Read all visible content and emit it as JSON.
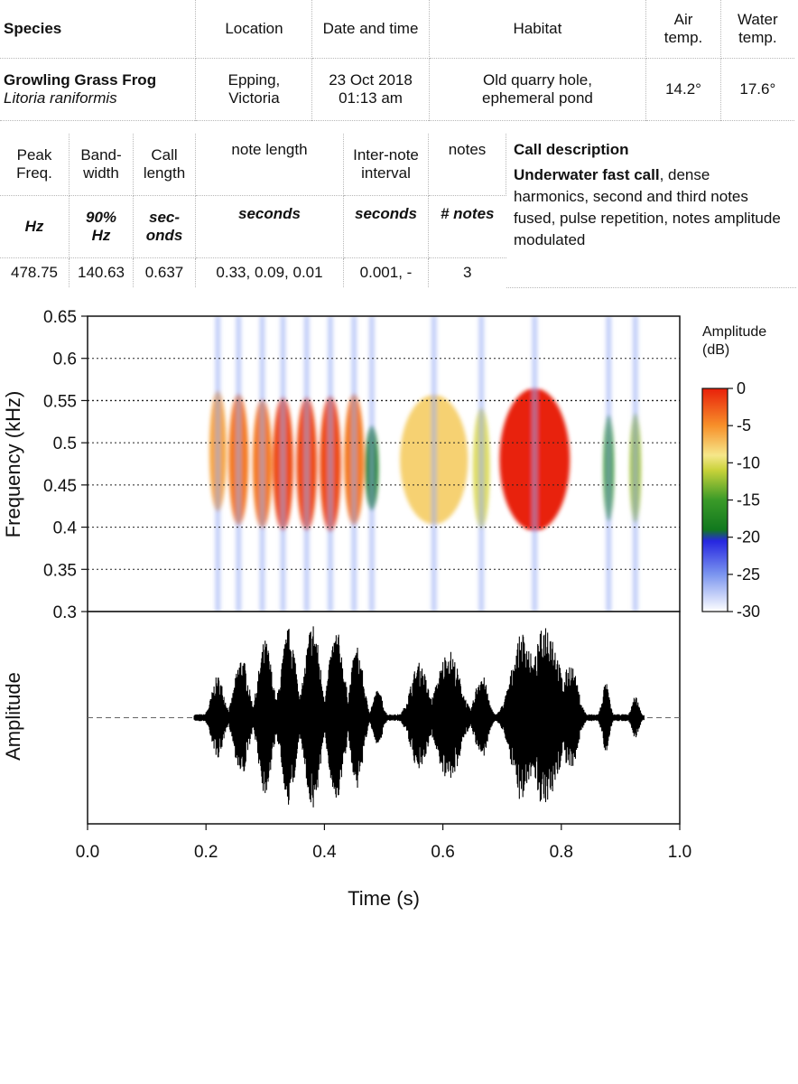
{
  "species_table": {
    "headers": {
      "species": "Species",
      "location": "Location",
      "date_time": "Date and time",
      "habitat": "Habitat",
      "air_temp": [
        "Air",
        "temp."
      ],
      "water_temp": [
        "Water",
        "temp."
      ]
    },
    "row": {
      "common_name": "Growling Grass Frog",
      "scientific_name": "Litoria raniformis",
      "location": [
        "Epping,",
        "Victoria"
      ],
      "date_time": [
        "23 Oct 2018",
        "01:13 am"
      ],
      "habitat": [
        "Old quarry hole,",
        "ephemeral pond"
      ],
      "air_temp": "14.2°",
      "water_temp": "17.6°"
    }
  },
  "call_table": {
    "headers": [
      [
        "Peak",
        "Freq."
      ],
      [
        "Band-",
        "width"
      ],
      [
        "Call",
        "length"
      ],
      [
        "note length"
      ],
      [
        "Inter-note",
        "interval"
      ],
      [
        "notes"
      ]
    ],
    "units": [
      [
        "Hz"
      ],
      [
        "90%",
        "Hz"
      ],
      [
        "sec-",
        "onds"
      ],
      [
        "seconds"
      ],
      [
        "seconds"
      ],
      [
        "# notes"
      ]
    ],
    "values": [
      "478.75",
      "140.63",
      "0.637",
      "0.33, 0.09, 0.01",
      "0.001, -",
      "3"
    ],
    "description_title": "Call description",
    "description_bold": "Underwater fast call",
    "description_text": ", dense harmonics, second and third notes fused, pulse repetition, notes amplitude modulated"
  },
  "chart_data": [
    {
      "type": "heatmap",
      "title": "",
      "xlabel": "",
      "ylabel": "Frequency (kHz)",
      "xlim": [
        0.0,
        1.0
      ],
      "ylim": [
        0.3,
        0.65
      ],
      "y_ticks": [
        "0.65",
        "0.6",
        "0.55",
        "0.5",
        "0.45",
        "0.4",
        "0.35",
        "0.3"
      ],
      "y_tick_values": [
        0.65,
        0.6,
        0.55,
        0.5,
        0.45,
        0.4,
        0.35,
        0.3
      ],
      "gridlines": [
        0.35,
        0.4,
        0.45,
        0.5,
        0.55,
        0.6
      ],
      "colorbar": {
        "label": [
          "Amplitude",
          "(dB)"
        ],
        "ticks": [
          "0",
          "-5",
          "-10",
          "-15",
          "-20",
          "-25",
          "-30"
        ],
        "tick_values": [
          0,
          -5,
          -10,
          -15,
          -20,
          -25,
          -30
        ],
        "range": [
          -30,
          0
        ],
        "stops": [
          {
            "db": 0,
            "color": "#e8200a"
          },
          {
            "db": -5,
            "color": "#f7902a"
          },
          {
            "db": -9,
            "color": "#f6e78a"
          },
          {
            "db": -11,
            "color": "#c8d23a"
          },
          {
            "db": -15,
            "color": "#3a9a28"
          },
          {
            "db": -19,
            "color": "#11781e"
          },
          {
            "db": -20.5,
            "color": "#2626e0"
          },
          {
            "db": -25,
            "color": "#7b95ef"
          },
          {
            "db": -30,
            "color": "#ffffff"
          }
        ]
      },
      "notes": [
        {
          "t": 0.22,
          "w": 0.012,
          "peak_db": -6,
          "f": 0.49,
          "bw": 0.055
        },
        {
          "t": 0.255,
          "w": 0.014,
          "peak_db": -4,
          "f": 0.48,
          "bw": 0.06
        },
        {
          "t": 0.295,
          "w": 0.014,
          "peak_db": -3,
          "f": 0.475,
          "bw": 0.06
        },
        {
          "t": 0.33,
          "w": 0.015,
          "peak_db": -1,
          "f": 0.475,
          "bw": 0.062
        },
        {
          "t": 0.37,
          "w": 0.015,
          "peak_db": -1,
          "f": 0.475,
          "bw": 0.062
        },
        {
          "t": 0.41,
          "w": 0.015,
          "peak_db": -2,
          "f": 0.475,
          "bw": 0.062
        },
        {
          "t": 0.45,
          "w": 0.014,
          "peak_db": -4,
          "f": 0.48,
          "bw": 0.06
        },
        {
          "t": 0.48,
          "w": 0.01,
          "peak_db": -16,
          "f": 0.47,
          "bw": 0.04
        },
        {
          "t": 0.585,
          "w": 0.05,
          "peak_db": -7,
          "f": 0.48,
          "bw": 0.06
        },
        {
          "t": 0.665,
          "w": 0.012,
          "peak_db": -10,
          "f": 0.47,
          "bw": 0.055
        },
        {
          "t": 0.755,
          "w": 0.05,
          "peak_db": 0,
          "f": 0.48,
          "bw": 0.065
        },
        {
          "t": 0.88,
          "w": 0.008,
          "peak_db": -13,
          "f": 0.47,
          "bw": 0.05
        },
        {
          "t": 0.925,
          "w": 0.008,
          "peak_db": -12,
          "f": 0.47,
          "bw": 0.05
        }
      ]
    },
    {
      "type": "line",
      "title": "",
      "xlabel": "Time (s)",
      "ylabel": "Amplitude",
      "xlim": [
        0.0,
        1.0
      ],
      "ylim": [
        -1.0,
        1.0
      ],
      "x_ticks": [
        "0.0",
        "0.2",
        "0.4",
        "0.6",
        "0.8",
        "1.0"
      ],
      "x_tick_values": [
        0.0,
        0.2,
        0.4,
        0.6,
        0.8,
        1.0
      ],
      "baseline": 0,
      "signal_start": 0.18,
      "signal_end": 0.94,
      "envelope": [
        {
          "t": 0.22,
          "w": 0.01,
          "amp": 0.42
        },
        {
          "t": 0.26,
          "w": 0.011,
          "amp": 0.62
        },
        {
          "t": 0.3,
          "w": 0.011,
          "amp": 0.78
        },
        {
          "t": 0.34,
          "w": 0.012,
          "amp": 0.9
        },
        {
          "t": 0.38,
          "w": 0.012,
          "amp": 0.97
        },
        {
          "t": 0.42,
          "w": 0.012,
          "amp": 0.88
        },
        {
          "t": 0.455,
          "w": 0.01,
          "amp": 0.72
        },
        {
          "t": 0.49,
          "w": 0.008,
          "amp": 0.28
        },
        {
          "t": 0.56,
          "w": 0.014,
          "amp": 0.55
        },
        {
          "t": 0.61,
          "w": 0.018,
          "amp": 0.68
        },
        {
          "t": 0.665,
          "w": 0.01,
          "amp": 0.45
        },
        {
          "t": 0.735,
          "w": 0.018,
          "amp": 0.85
        },
        {
          "t": 0.775,
          "w": 0.02,
          "amp": 0.97
        },
        {
          "t": 0.815,
          "w": 0.012,
          "amp": 0.55
        },
        {
          "t": 0.875,
          "w": 0.006,
          "amp": 0.35
        },
        {
          "t": 0.925,
          "w": 0.006,
          "amp": 0.22
        }
      ]
    }
  ]
}
